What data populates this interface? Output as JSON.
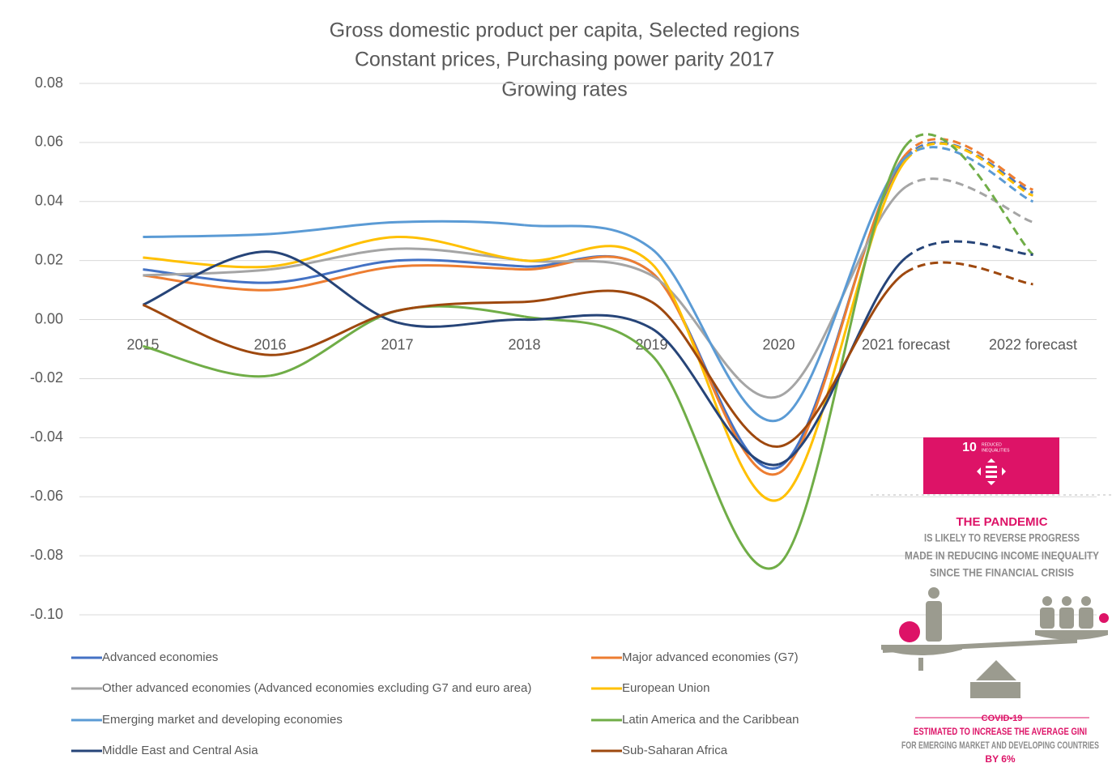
{
  "chart_data": {
    "type": "line",
    "title": [
      "Gross domestic product per capita, Selected regions",
      "Constant prices, Purchasing power parity 2017",
      "Growing rates"
    ],
    "categories": [
      "2015",
      "2016",
      "2017",
      "2018",
      "2019",
      "2020",
      "2021 forecast",
      "2022 forecast"
    ],
    "ylim": [
      -0.1,
      0.08
    ],
    "yticks": [
      {
        "value": -0.1,
        "label": "-0.10"
      },
      -0.08,
      -0.06,
      -0.04,
      -0.02,
      {
        "value": 0,
        "label": "0.00"
      },
      0.02,
      0.04,
      0.06,
      0.08
    ],
    "grid": true,
    "series": [
      {
        "name": "Advanced economies",
        "color": "#4472c4",
        "values": [
          0.017,
          0.0125,
          0.02,
          0.018,
          0.016,
          -0.05,
          0.055,
          0.043
        ]
      },
      {
        "name": "Major advanced economies (G7)",
        "color": "#ed7d31",
        "values": [
          0.015,
          0.01,
          0.018,
          0.017,
          0.016,
          -0.052,
          0.056,
          0.044
        ]
      },
      {
        "name": "Other advanced economies (Advanced economies excluding G7 and euro area)",
        "color": "#a5a5a5",
        "values": [
          0.015,
          0.017,
          0.024,
          0.02,
          0.015,
          -0.026,
          0.045,
          0.033
        ]
      },
      {
        "name": "European Union",
        "color": "#ffc000",
        "values": [
          0.021,
          0.018,
          0.028,
          0.02,
          0.019,
          -0.061,
          0.054,
          0.042
        ]
      },
      {
        "name": "Emerging market and developing economies",
        "color": "#5b9bd5",
        "values": [
          0.028,
          0.029,
          0.033,
          0.032,
          0.024,
          -0.034,
          0.055,
          0.04
        ]
      },
      {
        "name": "Latin America and the Caribbean",
        "color": "#70ad47",
        "values": [
          -0.009,
          -0.019,
          0.003,
          0.001,
          -0.012,
          -0.083,
          0.059,
          0.022
        ]
      },
      {
        "name": "Middle East and Central Asia",
        "color": "#264478",
        "values": [
          0.005,
          0.023,
          -0.001,
          0.0,
          -0.003,
          -0.049,
          0.021,
          0.022
        ]
      },
      {
        "name": "Sub-Saharan Africa",
        "color": "#9e480e",
        "values": [
          0.005,
          -0.012,
          0.003,
          0.006,
          0.006,
          -0.043,
          0.016,
          0.012
        ]
      }
    ]
  },
  "infographic": {
    "badge_number": "10",
    "badge_label": [
      "REDUCED",
      "INEQUALITIES"
    ],
    "headline": "THE PANDEMIC",
    "lines": [
      "IS LIKELY TO REVERSE PROGRESS",
      "MADE IN REDUCING INCOME INEQUALITY",
      "SINCE THE FINANCIAL CRISIS"
    ],
    "footer_title": "COVID-19",
    "footer_lines": [
      "ESTIMATED TO INCREASE THE AVERAGE GINI",
      "FOR EMERGING MARKET AND DEVELOPING COUNTRIES",
      "BY 6%"
    ]
  }
}
